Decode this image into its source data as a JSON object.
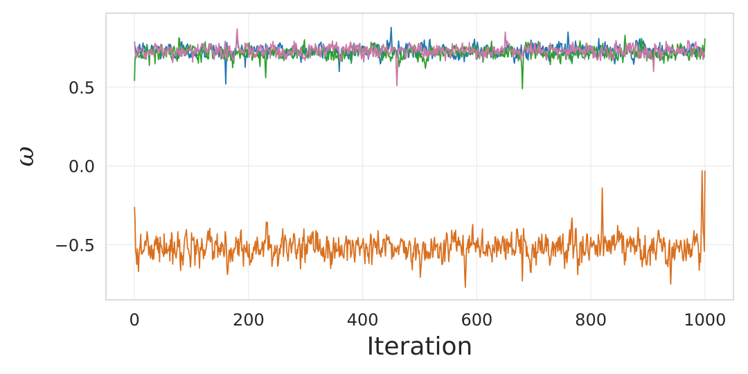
{
  "chart_data": {
    "type": "line",
    "title": "",
    "xlabel": "Iteration",
    "ylabel": "ω",
    "xlim": [
      -50,
      1050
    ],
    "ylim": [
      -0.85,
      0.97
    ],
    "x_ticks": [
      0,
      200,
      400,
      600,
      800,
      1000
    ],
    "x_tick_labels": [
      "0",
      "200",
      "400",
      "600",
      "800",
      "1000"
    ],
    "y_ticks": [
      -0.5,
      0.0,
      0.5
    ],
    "y_tick_labels": [
      "−0.5",
      "0.0",
      "0.5"
    ],
    "grid": true,
    "legend": "none",
    "n_iterations": 1000,
    "series": [
      {
        "color": "#1f77b4",
        "mean": 0.73,
        "noise": 0.045,
        "start": 0.79,
        "end": 0.7,
        "events": [
          [
            160,
            0.52
          ],
          [
            450,
            0.88
          ],
          [
            760,
            0.85
          ],
          [
            180,
            0.83
          ]
        ]
      },
      {
        "color": "#2ca02c",
        "mean": 0.72,
        "noise": 0.045,
        "start": 0.54,
        "end": 0.81,
        "events": [
          [
            680,
            0.49
          ],
          [
            860,
            0.83
          ],
          [
            230,
            0.56
          ],
          [
            510,
            0.62
          ]
        ]
      },
      {
        "color": "#cc79a7",
        "mean": 0.73,
        "noise": 0.045,
        "start": 0.79,
        "end": 0.72,
        "events": [
          [
            460,
            0.51
          ],
          [
            180,
            0.87
          ],
          [
            650,
            0.85
          ],
          [
            910,
            0.6
          ]
        ]
      },
      {
        "color": "#d9701f",
        "mean": -0.52,
        "noise": 0.09,
        "start": -0.26,
        "end": -0.03,
        "events": [
          [
            580,
            -0.77
          ],
          [
            680,
            -0.73
          ],
          [
            820,
            -0.14
          ],
          [
            995,
            -0.03
          ],
          [
            940,
            -0.75
          ]
        ]
      }
    ]
  }
}
